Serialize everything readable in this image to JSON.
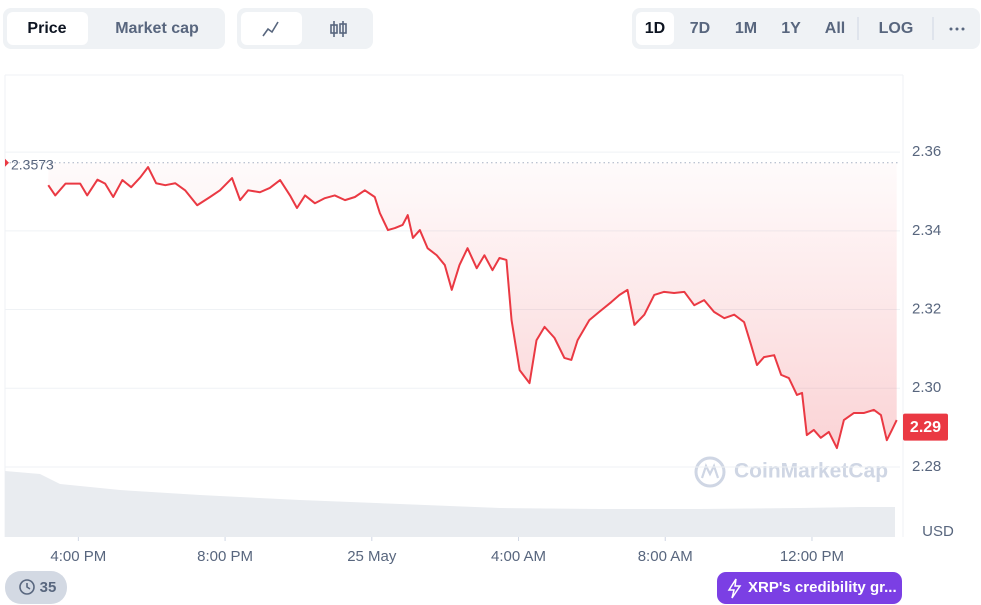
{
  "toolbar": {
    "metrics": [
      "Price",
      "Market cap"
    ],
    "ranges": [
      "1D",
      "7D",
      "1M",
      "1Y",
      "All"
    ],
    "scale": "LOG"
  },
  "chart_data": {
    "type": "line",
    "color": "#ea3943",
    "x": [
      15.18,
      15.37,
      15.65,
      16.05,
      16.24,
      16.52,
      16.73,
      16.95,
      17.2,
      17.44,
      17.69,
      17.9,
      18.12,
      18.37,
      18.64,
      18.91,
      19.24,
      19.59,
      19.86,
      20.19,
      20.41,
      20.63,
      20.95,
      21.22,
      21.5,
      21.77,
      21.96,
      22.18,
      22.45,
      22.72,
      22.99,
      23.27,
      23.54,
      23.81,
      24.08,
      24.22,
      24.44,
      24.63,
      24.84,
      24.98,
      25.12,
      25.31,
      25.52,
      25.77,
      25.99,
      26.18,
      26.39,
      26.61,
      26.86,
      27.07,
      27.29,
      27.48,
      27.67,
      27.81,
      28.03,
      28.3,
      28.49,
      28.71,
      28.98,
      29.25,
      29.44,
      29.61,
      29.93,
      30.2,
      30.53,
      30.75,
      30.97,
      31.16,
      31.43,
      31.7,
      31.97,
      32.24,
      32.52,
      32.79,
      33.06,
      33.33,
      33.61,
      33.88,
      34.15,
      34.34,
      34.5,
      34.69,
      34.97,
      35.16,
      35.37,
      35.59,
      35.73,
      35.86,
      36.05,
      36.24,
      36.46,
      36.68,
      36.87,
      37.14,
      37.41,
      37.69,
      37.88,
      38.04,
      38.18,
      38.31
    ],
    "values": [
      2.3516,
      2.349,
      2.352,
      2.352,
      2.349,
      2.353,
      2.352,
      2.3486,
      2.3529,
      2.3511,
      2.3536,
      2.3562,
      2.3521,
      2.3516,
      2.3521,
      2.3503,
      2.3465,
      2.3486,
      2.3503,
      2.3534,
      2.3478,
      2.3503,
      2.3498,
      2.3509,
      2.3529,
      2.349,
      2.3458,
      2.349,
      2.347,
      2.3483,
      2.349,
      2.3478,
      2.3486,
      2.3503,
      2.3486,
      2.3445,
      2.3402,
      2.3407,
      2.3415,
      2.344,
      2.3382,
      2.3402,
      2.3356,
      2.3338,
      2.3313,
      2.325,
      2.3313,
      2.3356,
      2.3305,
      2.3338,
      2.33,
      2.3331,
      2.3326,
      2.3173,
      2.3046,
      2.3013,
      2.3122,
      2.3156,
      2.3128,
      2.3077,
      2.3072,
      2.3122,
      2.3173,
      2.3194,
      2.3219,
      2.3237,
      2.325,
      2.3161,
      2.3187,
      2.3237,
      2.3245,
      2.3242,
      2.3245,
      2.3211,
      2.3224,
      2.3194,
      2.3178,
      2.3187,
      2.3168,
      2.311,
      2.3059,
      2.3079,
      2.3084,
      2.3034,
      2.3026,
      2.2983,
      2.2988,
      2.2881,
      2.2894,
      2.2874,
      2.2889,
      2.2848,
      2.2919,
      2.2937,
      2.2937,
      2.2945,
      2.2932,
      2.2868,
      2.2894,
      2.2919
    ],
    "xlim": [
      14,
      38.4
    ],
    "xticks": [
      {
        "value": 16,
        "label": "4:00 PM"
      },
      {
        "value": 20,
        "label": "8:00 PM"
      },
      {
        "value": 24,
        "label": "25 May"
      },
      {
        "value": 28,
        "label": "4:00 AM"
      },
      {
        "value": 32,
        "label": "8:00 AM"
      },
      {
        "value": 36,
        "label": "12:00 PM"
      }
    ],
    "ylim": [
      2.2622,
      2.3796
    ],
    "yticks": [
      2.28,
      {
        "value": 2.3,
        "label": "2.30"
      },
      2.32,
      2.34,
      2.36
    ],
    "grid": true,
    "y_unit": "USD",
    "high_value": 2.3573,
    "current_value": 2.29,
    "watermark": "CoinMarketCap"
  },
  "footer": {
    "badge": 35,
    "news": "XRP's credibility gr..."
  }
}
